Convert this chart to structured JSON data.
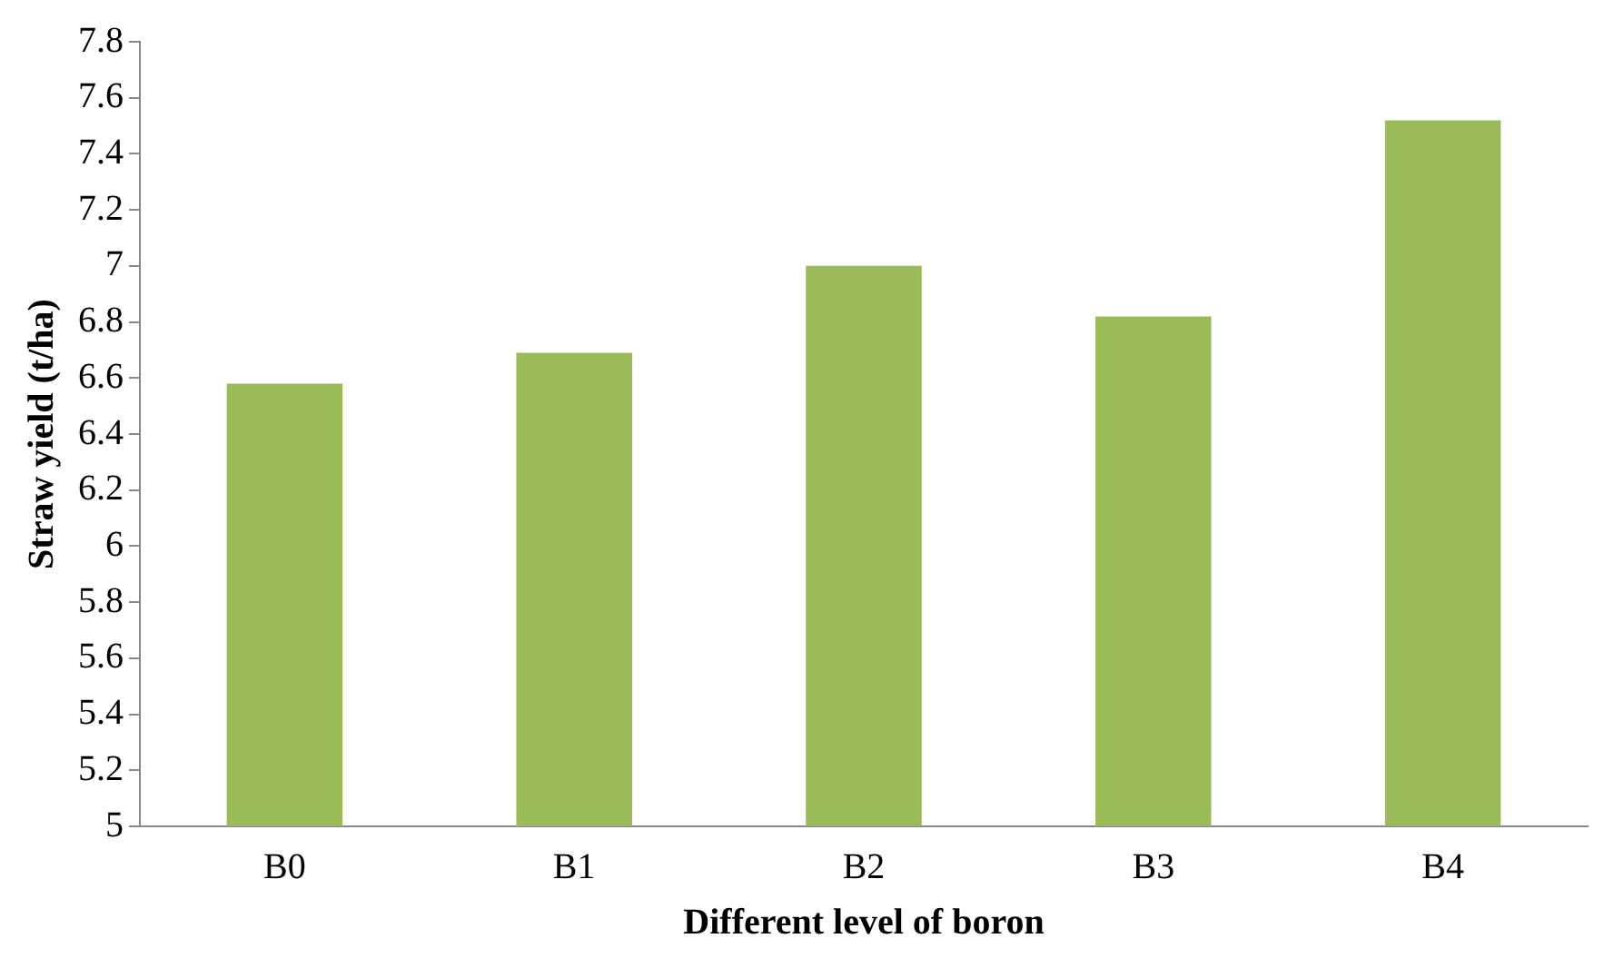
{
  "chart_data": {
    "type": "bar",
    "xlabel": "Different level of boron",
    "ylabel": "Straw yield (t/ha)",
    "categories": [
      "B0",
      "B1",
      "B2",
      "B3",
      "B4"
    ],
    "values": [
      6.58,
      6.69,
      7.0,
      6.82,
      7.52
    ],
    "color": "#9bbb59",
    "ylim": [
      5,
      7.8
    ],
    "yticks": [
      5,
      5.2,
      5.4,
      5.6,
      5.8,
      6,
      6.2,
      6.4,
      6.6,
      6.8,
      {
        "value": 7,
        "label": "7"
      },
      7.2,
      7.4,
      7.6,
      7.8
    ],
    "grid": false,
    "legend": false
  }
}
